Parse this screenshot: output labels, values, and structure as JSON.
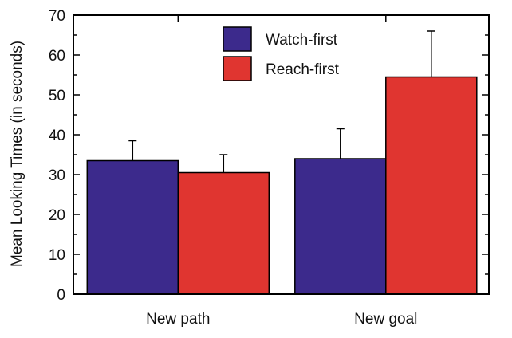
{
  "chart_data": {
    "type": "bar",
    "title": "",
    "xlabel": "",
    "ylabel": "Mean Looking Times (in seconds)",
    "ylim": [
      0,
      70
    ],
    "yticks": [
      0,
      10,
      20,
      30,
      40,
      50,
      60,
      70
    ],
    "y_minor_step": 5,
    "categories": [
      "New path",
      "New goal"
    ],
    "series": [
      {
        "name": "Watch-first",
        "color": "#3c2a8c",
        "values": [
          33.5,
          34
        ],
        "errors": [
          5,
          7.5
        ]
      },
      {
        "name": "Reach-first",
        "color": "#e03530",
        "values": [
          30.5,
          54.5
        ],
        "errors": [
          4.5,
          11.5
        ]
      }
    ],
    "legend": {
      "placement": "top-center"
    },
    "grid": false,
    "error_bars": "upper"
  }
}
